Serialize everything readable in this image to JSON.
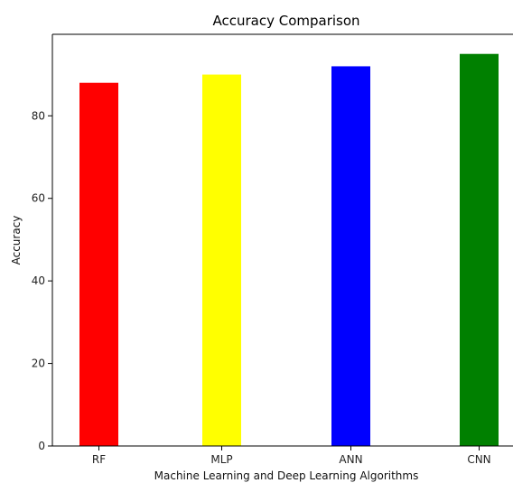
{
  "chart_data": {
    "type": "bar",
    "title": "Accuracy Comparison",
    "xlabel": "Machine Learning and Deep Learning Algorithms",
    "ylabel": "Accuracy",
    "categories": [
      "RF",
      "MLP",
      "ANN",
      "CNN"
    ],
    "values": [
      88,
      90,
      92,
      95
    ],
    "colors": [
      "#ff0000",
      "#ffff00",
      "#0000ff",
      "#008000"
    ],
    "ylim": [
      0,
      99.75
    ],
    "yticks": [
      0,
      20,
      40,
      60,
      80
    ],
    "ytick_labels": [
      "0",
      "20",
      "40",
      "60",
      "80"
    ],
    "grid": false,
    "legend": false
  }
}
